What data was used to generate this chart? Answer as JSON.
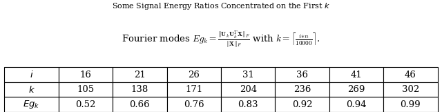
{
  "title_line1": "Some Signal Energy Ratios Concentrated on the First $k$",
  "title_line2": "Fourier modes $Eg_k = \\frac{\\|\\mathbf{U}_k\\mathbf{U}_k^T\\mathbf{X}\\|_F}{\\|\\mathbf{X}\\|_F}$ with $k = \\left\\lceil\\frac{i{*}n}{10000}\\right\\rceil$.",
  "col_headers": [
    "$i$",
    "16",
    "21",
    "26",
    "31",
    "36",
    "41",
    "46"
  ],
  "row_k": [
    "$k$",
    "105",
    "138",
    "171",
    "204",
    "236",
    "269",
    "302"
  ],
  "row_Egk": [
    "$Eg_k$",
    "0.52",
    "0.66",
    "0.76",
    "0.83",
    "0.92",
    "0.94",
    "0.99"
  ],
  "background_color": "#ffffff",
  "table_edge_color": "#000000",
  "text_color": "#000000",
  "title1_fontsize": 8.0,
  "title2_fontsize": 9.5,
  "table_fontsize": 9.5
}
